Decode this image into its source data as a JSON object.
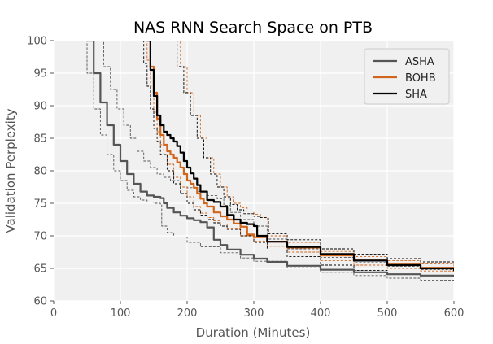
{
  "chart_data": {
    "type": "line",
    "title": "NAS RNN Search Space on PTB",
    "xlabel": "Duration (Minutes)",
    "ylabel": "Validation Perplexity",
    "xlim": [
      0,
      600
    ],
    "ylim": [
      60,
      100
    ],
    "xticks": [
      0,
      100,
      200,
      300,
      400,
      500,
      600
    ],
    "yticks": [
      60,
      65,
      70,
      75,
      80,
      85,
      90,
      95,
      100
    ],
    "grid": true,
    "legend_position": "top-right",
    "colors": {
      "background": "#f0f0f0",
      "grid": "#ffffff",
      "ASHA": "#555555",
      "BOHB": "#d2651c",
      "SHA": "#000000"
    },
    "series": [
      {
        "name": "ASHA",
        "color": "#555555",
        "style": "solid",
        "x": [
          50,
          60,
          70,
          80,
          90,
          100,
          110,
          120,
          130,
          140,
          150,
          160,
          165,
          170,
          180,
          190,
          200,
          210,
          220,
          230,
          240,
          250,
          260,
          280,
          300,
          320,
          350,
          400,
          450,
          500,
          550,
          600
        ],
        "y": [
          100,
          95,
          90.5,
          87,
          84,
          81.5,
          79.5,
          78,
          76.8,
          76.2,
          76,
          75.8,
          75,
          74.3,
          73.6,
          73.1,
          72.7,
          72.4,
          72.1,
          71.3,
          69.4,
          68.6,
          67.9,
          67.1,
          66.5,
          66,
          65.4,
          64.8,
          64.4,
          64.1,
          63.9,
          63.7
        ]
      },
      {
        "name": "ASHA upper band",
        "color": "#555555",
        "style": "dashed",
        "x": [
          65,
          75,
          85,
          95,
          105,
          115,
          125,
          135,
          145,
          155,
          165,
          175,
          190,
          200,
          215,
          230,
          245,
          255,
          265,
          280,
          300,
          320,
          350,
          400,
          450,
          500,
          550,
          600
        ],
        "y": [
          100,
          96,
          92.5,
          89.5,
          87,
          85,
          83,
          81.5,
          80.5,
          79.5,
          79,
          78.5,
          77.8,
          77.4,
          76.8,
          76.2,
          75.7,
          74.7,
          73.6,
          72.5,
          71.5,
          69.5,
          68,
          66.7,
          65.9,
          65.3,
          64.8,
          64.5
        ]
      },
      {
        "name": "ASHA lower band",
        "color": "#555555",
        "style": "dashed",
        "x": [
          42,
          50,
          60,
          70,
          80,
          90,
          100,
          110,
          120,
          130,
          140,
          150,
          160,
          162,
          170,
          180,
          200,
          220,
          250,
          280,
          300,
          350,
          400,
          450,
          500,
          550,
          600
        ],
        "y": [
          100,
          95,
          89.5,
          85.5,
          82.5,
          80,
          78.5,
          77,
          76,
          75.5,
          75.2,
          75,
          74.8,
          71.5,
          70.5,
          69.8,
          69,
          68.3,
          67.4,
          66.6,
          66.1,
          65.1,
          64.4,
          63.9,
          63.5,
          63.2,
          63
        ]
      },
      {
        "name": "BOHB",
        "color": "#d2651c",
        "style": "solid",
        "x": [
          140,
          145,
          150,
          155,
          160,
          165,
          170,
          175,
          180,
          185,
          190,
          195,
          200,
          205,
          210,
          215,
          220,
          225,
          230,
          240,
          250,
          260,
          270,
          280,
          290,
          300,
          320,
          350,
          400,
          450,
          500,
          550,
          600
        ],
        "y": [
          100,
          96,
          92,
          88,
          85.5,
          84,
          83,
          82.5,
          82,
          81.3,
          80.5,
          79.5,
          78.5,
          78,
          77.4,
          76.5,
          75.7,
          75,
          74.5,
          73.6,
          73,
          72.5,
          71.9,
          71.4,
          70.2,
          69.8,
          69.1,
          68.2,
          67,
          66.2,
          65.6,
          65.1,
          64.8
        ]
      },
      {
        "name": "BOHB upper band",
        "color": "#d2651c",
        "style": "dashed",
        "x": [
          185,
          190,
          200,
          210,
          220,
          230,
          240,
          250,
          260,
          270,
          280,
          290,
          300,
          310,
          320,
          321,
          350,
          400,
          450,
          500,
          550,
          600
        ],
        "y": [
          100,
          96,
          92,
          88.5,
          85,
          82,
          79.5,
          77.5,
          76,
          75,
          74.3,
          73.8,
          73.3,
          72.8,
          72.5,
          70,
          69,
          67.6,
          66.8,
          66.2,
          65.7,
          65.3
        ]
      },
      {
        "name": "BOHB lower band",
        "color": "#d2651c",
        "style": "dashed",
        "x": [
          138,
          140,
          145,
          150,
          155,
          160,
          165,
          170,
          180,
          190,
          200,
          210,
          220,
          230,
          240,
          250,
          260,
          280,
          300,
          320,
          350,
          400,
          450,
          500,
          550,
          600
        ],
        "y": [
          100,
          97,
          93,
          89,
          86,
          84,
          82.5,
          81,
          79,
          77.5,
          76,
          74.5,
          73.5,
          72.8,
          72.3,
          71.8,
          71.2,
          70,
          69.2,
          68.4,
          67.5,
          66.2,
          65.5,
          65,
          64.6,
          64.3
        ]
      },
      {
        "name": "SHA",
        "color": "#000000",
        "style": "solid",
        "x": [
          140,
          145,
          150,
          155,
          160,
          165,
          170,
          175,
          180,
          185,
          190,
          195,
          200,
          205,
          210,
          215,
          220,
          230,
          240,
          250,
          260,
          270,
          280,
          290,
          300,
          305,
          320,
          350,
          400,
          450,
          500,
          550,
          600
        ],
        "y": [
          100,
          95.5,
          91.5,
          88.5,
          87,
          86,
          85.5,
          85,
          84.5,
          83.8,
          82.8,
          81.5,
          80.5,
          79.6,
          78.8,
          77.8,
          76.8,
          75.5,
          75.2,
          74.5,
          73.2,
          72.5,
          72,
          71.8,
          71.5,
          70,
          69.1,
          68.3,
          67.2,
          66.2,
          65.5,
          65,
          64.6
        ]
      },
      {
        "name": "SHA upper band",
        "color": "#000000",
        "style": "dashed",
        "x": [
          178,
          185,
          195,
          205,
          215,
          225,
          235,
          245,
          255,
          265,
          275,
          285,
          300,
          310,
          320,
          322,
          350,
          400,
          450,
          500,
          550,
          600
        ],
        "y": [
          100,
          96,
          92,
          88.5,
          85,
          82,
          79.5,
          77.5,
          76,
          74.8,
          74,
          73.4,
          73,
          72.8,
          72.7,
          70.3,
          69.4,
          68,
          67.2,
          66.5,
          66,
          65.7
        ]
      },
      {
        "name": "SHA lower band",
        "color": "#000000",
        "style": "dashed",
        "x": [
          128,
          135,
          140,
          145,
          150,
          155,
          160,
          170,
          180,
          190,
          200,
          210,
          220,
          230,
          240,
          250,
          260,
          280,
          300,
          320,
          350,
          400,
          450,
          500,
          550,
          600
        ],
        "y": [
          100,
          96.5,
          93,
          89.5,
          86.5,
          84.5,
          82.5,
          80,
          78,
          76.5,
          75,
          74,
          73.2,
          72.5,
          72,
          71.5,
          71,
          70,
          69,
          67.8,
          66.8,
          65.5,
          64.7,
          64.1,
          63.7,
          63.4
        ]
      }
    ],
    "legend": [
      {
        "label": "ASHA",
        "color": "#555555"
      },
      {
        "label": "BOHB",
        "color": "#d2651c"
      },
      {
        "label": "SHA",
        "color": "#000000"
      }
    ]
  }
}
